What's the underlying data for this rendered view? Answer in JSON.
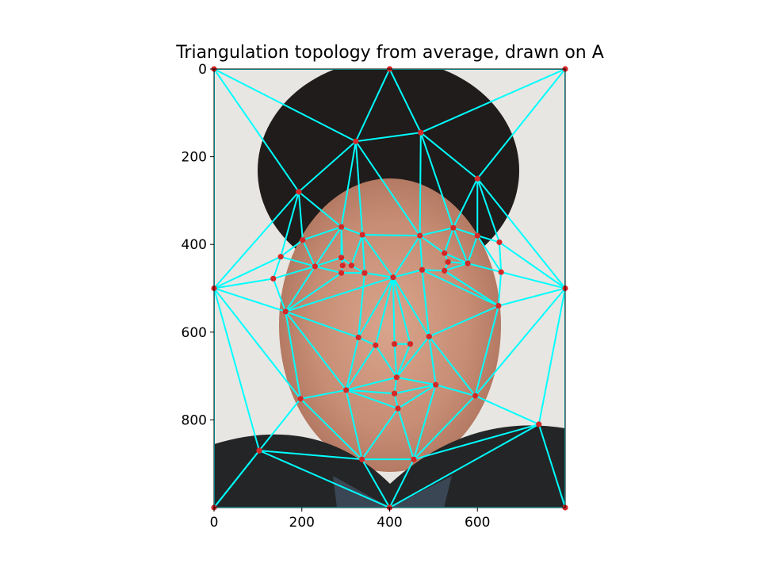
{
  "chart_data": {
    "type": "scatter",
    "title": "Triangulation topology from average, drawn on A",
    "xlabel": "",
    "ylabel": "",
    "xlim": [
      0,
      800
    ],
    "ylim": [
      1000,
      0
    ],
    "x_ticks": [
      0,
      200,
      400,
      600
    ],
    "y_ticks": [
      0,
      200,
      400,
      600,
      800
    ],
    "grid": false,
    "points": [
      [
        0,
        0
      ],
      [
        400,
        0
      ],
      [
        800,
        0
      ],
      [
        0,
        500
      ],
      [
        800,
        500
      ],
      [
        0,
        1000
      ],
      [
        400,
        1000
      ],
      [
        800,
        1000
      ],
      [
        323,
        165
      ],
      [
        471,
        145
      ],
      [
        600,
        250
      ],
      [
        193,
        280
      ],
      [
        290,
        360
      ],
      [
        338,
        378
      ],
      [
        202,
        390
      ],
      [
        469,
        380
      ],
      [
        545,
        362
      ],
      [
        600,
        380
      ],
      [
        650,
        395
      ],
      [
        152,
        428
      ],
      [
        230,
        450
      ],
      [
        290,
        430
      ],
      [
        293,
        448
      ],
      [
        290,
        465
      ],
      [
        313,
        448
      ],
      [
        343,
        465
      ],
      [
        408,
        475
      ],
      [
        474,
        458
      ],
      [
        525,
        420
      ],
      [
        533,
        440
      ],
      [
        525,
        460
      ],
      [
        578,
        443
      ],
      [
        654,
        463
      ],
      [
        135,
        478
      ],
      [
        163,
        553
      ],
      [
        648,
        540
      ],
      [
        329,
        612
      ],
      [
        368,
        630
      ],
      [
        411,
        627
      ],
      [
        447,
        627
      ],
      [
        490,
        610
      ],
      [
        416,
        703
      ],
      [
        301,
        732
      ],
      [
        411,
        740
      ],
      [
        505,
        720
      ],
      [
        419,
        774
      ],
      [
        197,
        752
      ],
      [
        595,
        745
      ],
      [
        103,
        870
      ],
      [
        740,
        810
      ],
      [
        337,
        890
      ],
      [
        455,
        890
      ]
    ],
    "edges": [
      [
        0,
        1
      ],
      [
        1,
        2
      ],
      [
        0,
        5
      ],
      [
        2,
        7
      ],
      [
        5,
        6
      ],
      [
        6,
        7
      ],
      [
        0,
        3
      ],
      [
        3,
        5
      ],
      [
        2,
        4
      ],
      [
        4,
        7
      ],
      [
        0,
        8
      ],
      [
        1,
        8
      ],
      [
        1,
        9
      ],
      [
        8,
        9
      ],
      [
        2,
        9
      ],
      [
        2,
        10
      ],
      [
        9,
        10
      ],
      [
        0,
        11
      ],
      [
        8,
        11
      ],
      [
        3,
        11
      ],
      [
        10,
        4
      ],
      [
        11,
        14
      ],
      [
        11,
        12
      ],
      [
        8,
        12
      ],
      [
        8,
        13
      ],
      [
        8,
        15
      ],
      [
        9,
        15
      ],
      [
        9,
        16
      ],
      [
        10,
        16
      ],
      [
        10,
        17
      ],
      [
        10,
        18
      ],
      [
        18,
        4
      ],
      [
        11,
        19
      ],
      [
        3,
        19
      ],
      [
        14,
        19
      ],
      [
        14,
        12
      ],
      [
        12,
        13
      ],
      [
        13,
        15
      ],
      [
        15,
        16
      ],
      [
        16,
        17
      ],
      [
        17,
        18
      ],
      [
        12,
        20
      ],
      [
        14,
        20
      ],
      [
        19,
        20
      ],
      [
        20,
        21
      ],
      [
        21,
        24
      ],
      [
        24,
        25
      ],
      [
        25,
        23
      ],
      [
        22,
        23
      ],
      [
        20,
        23
      ],
      [
        12,
        21
      ],
      [
        13,
        24
      ],
      [
        13,
        25
      ],
      [
        15,
        26
      ],
      [
        13,
        26
      ],
      [
        25,
        26
      ],
      [
        15,
        27
      ],
      [
        26,
        27
      ],
      [
        15,
        28
      ],
      [
        16,
        28
      ],
      [
        28,
        29
      ],
      [
        29,
        31
      ],
      [
        27,
        30
      ],
      [
        30,
        31
      ],
      [
        16,
        31
      ],
      [
        17,
        31
      ],
      [
        17,
        32
      ],
      [
        18,
        32
      ],
      [
        32,
        4
      ],
      [
        31,
        32
      ],
      [
        30,
        35
      ],
      [
        32,
        35
      ],
      [
        35,
        4
      ],
      [
        3,
        33
      ],
      [
        19,
        33
      ],
      [
        20,
        33
      ],
      [
        3,
        34
      ],
      [
        33,
        34
      ],
      [
        20,
        34
      ],
      [
        23,
        34
      ],
      [
        26,
        34
      ],
      [
        34,
        36
      ],
      [
        25,
        36
      ],
      [
        26,
        36
      ],
      [
        36,
        37
      ],
      [
        37,
        26
      ],
      [
        26,
        38
      ],
      [
        38,
        39
      ],
      [
        39,
        26
      ],
      [
        26,
        40
      ],
      [
        27,
        40
      ],
      [
        40,
        35
      ],
      [
        35,
        30
      ],
      [
        27,
        35
      ],
      [
        34,
        42
      ],
      [
        36,
        42
      ],
      [
        37,
        42
      ],
      [
        37,
        41
      ],
      [
        38,
        41
      ],
      [
        39,
        41
      ],
      [
        40,
        41
      ],
      [
        40,
        44
      ],
      [
        41,
        44
      ],
      [
        41,
        42
      ],
      [
        41,
        43
      ],
      [
        43,
        44
      ],
      [
        42,
        43
      ],
      [
        42,
        45
      ],
      [
        43,
        45
      ],
      [
        44,
        45
      ],
      [
        3,
        46
      ],
      [
        34,
        46
      ],
      [
        42,
        46
      ],
      [
        35,
        47
      ],
      [
        44,
        47
      ],
      [
        40,
        47
      ],
      [
        4,
        47
      ],
      [
        5,
        48
      ],
      [
        3,
        48
      ],
      [
        46,
        48
      ],
      [
        48,
        50
      ],
      [
        46,
        50
      ],
      [
        42,
        50
      ],
      [
        45,
        50
      ],
      [
        45,
        51
      ],
      [
        50,
        51
      ],
      [
        51,
        44
      ],
      [
        51,
        47
      ],
      [
        51,
        49
      ],
      [
        47,
        49
      ],
      [
        4,
        49
      ],
      [
        49,
        7
      ],
      [
        5,
        48
      ],
      [
        48,
        6
      ],
      [
        50,
        6
      ],
      [
        51,
        6
      ],
      [
        49,
        6
      ],
      [
        12,
        22
      ],
      [
        21,
        22
      ],
      [
        28,
        31
      ],
      [
        29,
        30
      ]
    ],
    "colors": {
      "edge": "#00ffff",
      "point": "#d62728",
      "frame": "#000000"
    }
  }
}
